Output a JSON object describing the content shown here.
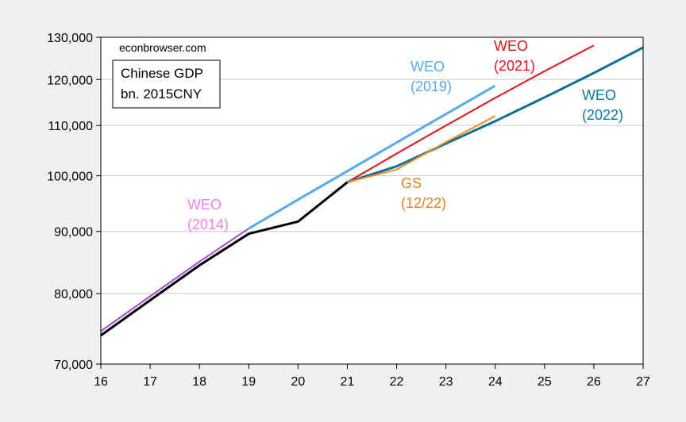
{
  "chart_data": {
    "type": "line",
    "watermark": "econbrowser.com",
    "legend_box": {
      "line1": "Chinese GDP",
      "line2": "bn. 2015CNY"
    },
    "y_scale": "log",
    "ylim": [
      70000,
      130000
    ],
    "xlim": [
      16,
      27
    ],
    "x_ticks": [
      "16",
      "17",
      "18",
      "19",
      "20",
      "21",
      "22",
      "23",
      "24",
      "25",
      "26",
      "27"
    ],
    "y_ticks": [
      {
        "value": 70000,
        "label": "70,000"
      },
      {
        "value": 80000,
        "label": "80,000"
      },
      {
        "value": 90000,
        "label": "90,000"
      },
      {
        "value": 100000,
        "label": "100,000"
      },
      {
        "value": 110000,
        "label": "110,000"
      },
      {
        "value": 120000,
        "label": "120,000"
      },
      {
        "value": 130000,
        "label": "130,000"
      }
    ],
    "grid": true,
    "series": [
      {
        "id": "weo2014",
        "color": "#a54bd1",
        "width": 2,
        "x": [
          16,
          17,
          18,
          19
        ],
        "y": [
          74500,
          79600,
          85000,
          90500
        ]
      },
      {
        "id": "weo2019",
        "color": "#56aaf0",
        "width": 3,
        "x": [
          19,
          20,
          21,
          22,
          23,
          24
        ],
        "y": [
          90500,
          95600,
          100900,
          106500,
          112400,
          118600
        ]
      },
      {
        "id": "weo2021",
        "color": "#e3101d",
        "width": 2,
        "x": [
          21,
          22,
          23,
          24,
          25,
          26
        ],
        "y": [
          98800,
          104300,
          110000,
          115900,
          121900,
          128000
        ]
      },
      {
        "id": "weo2022",
        "color": "#0f6e93",
        "width": 3,
        "x": [
          21,
          22,
          23,
          24,
          25,
          26,
          27
        ],
        "y": [
          98800,
          101800,
          106300,
          110900,
          116000,
          121500,
          127500
        ]
      },
      {
        "id": "gs",
        "color": "#f28c1f",
        "width": 2,
        "x": [
          21,
          22,
          23,
          24
        ],
        "y": [
          98800,
          101200,
          106600,
          112000
        ]
      },
      {
        "id": "actual",
        "color": "#000000",
        "width": 3,
        "x": [
          16,
          17,
          18,
          19,
          20,
          21
        ],
        "y": [
          73900,
          79000,
          84400,
          89600,
          91700,
          98800
        ]
      }
    ],
    "annotations": [
      {
        "id": "weo2014",
        "lines": [
          "WEO",
          "(2014)"
        ],
        "color": "#ee82ee"
      },
      {
        "id": "weo2019",
        "lines": [
          "WEO",
          "(2019)"
        ],
        "color": "#56aaf0"
      },
      {
        "id": "weo2021",
        "lines": [
          "WEO",
          "(2021)"
        ],
        "color": "#e3101d"
      },
      {
        "id": "weo2022",
        "lines": [
          "WEO",
          "(2022)"
        ],
        "color": "#1177aa"
      },
      {
        "id": "gs",
        "lines": [
          "GS",
          "(12/22)"
        ],
        "color": "#e8821e"
      }
    ]
  }
}
